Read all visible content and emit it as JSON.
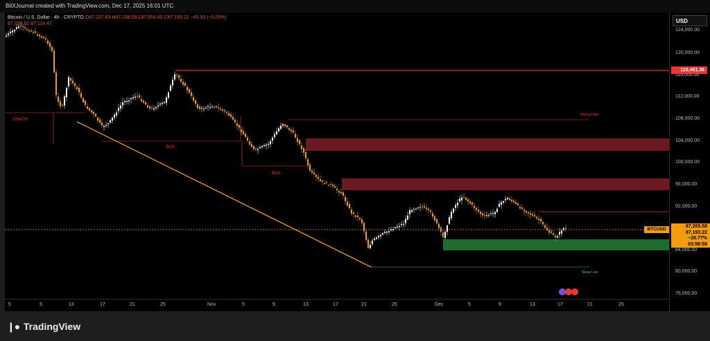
{
  "header": {
    "text": "BitXJournal created with TradingView.com, Dec 17, 2025 16:01 UTC"
  },
  "legend": {
    "symbol": "Bitcoin / U.S. Dollar · 4h · CRYPTO",
    "ohlc": "O87,237.63  H87,238.09  L87,054.60  C87,193.22  −45.93 (−0.05%)",
    "indicator": "87,054.60  87,114.47"
  },
  "price_scale": {
    "currency_button": "USD",
    "ticks": [
      "124,000.00",
      "120,000.00",
      "116,000.00",
      "112,000.00",
      "108,000.00",
      "104,000.00",
      "100,000.00",
      "96,000.00",
      "92,000.00",
      "84,000.00",
      "80,000.00",
      "76,000.00"
    ],
    "red_marker": "116,461.36",
    "orange_marker": {
      "line1": "87,265.58",
      "line2": "87,193.22",
      "line3": "−28.77%",
      "line4": "03:58:58"
    },
    "symbol_label": "BTCUSD"
  },
  "time_axis": {
    "ticks": [
      "5",
      "9",
      "13",
      "17",
      "21",
      "25",
      "Nov",
      "5",
      "9",
      "13",
      "17",
      "21",
      "25",
      "Dec",
      "5",
      "9",
      "13",
      "17",
      "21",
      "25"
    ]
  },
  "annotations": {
    "choch_left": "CHoCH",
    "bos_1": "BOS",
    "bos_2": "BOS",
    "strong_high": "Strong High",
    "weak_low": "Weak Low"
  },
  "footer": {
    "brand": "TradingView"
  },
  "colors": {
    "bull": "#f5f5f5",
    "bear": "#f39c12",
    "supply_zone": "#6b1a22",
    "demand_zone": "#1e6b2e",
    "trendline": "#f39c12",
    "level_red": "#e53935"
  }
}
